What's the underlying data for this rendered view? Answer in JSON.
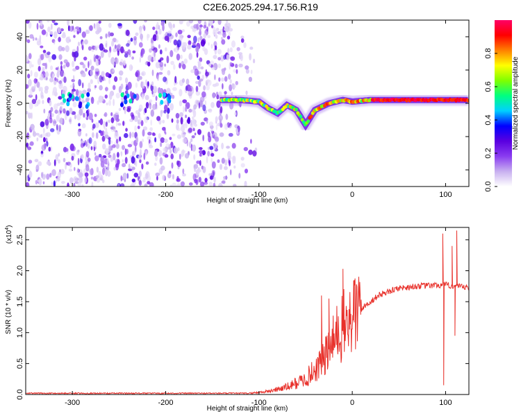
{
  "title": "C2E6.2025.294.17.56.R19",
  "chart_data": [
    {
      "type": "heatmap",
      "name": "spectrogram",
      "xlabel": "Height of straight line (km)",
      "ylabel": "Frequency (Hz)",
      "xlim": [
        -350,
        125
      ],
      "ylim": [
        -50,
        50
      ],
      "xticks": [
        -300,
        -200,
        -100,
        0,
        100
      ],
      "yticks": [
        -40,
        -20,
        0,
        20,
        40
      ],
      "colorbar": {
        "label": "Normalized spectral amplitude",
        "range": [
          0,
          1
        ],
        "ticks": [
          0.0,
          0.2,
          0.4,
          0.6,
          0.8
        ],
        "colors": [
          "#ffffff",
          "#c8b0f0",
          "#8a3cf0",
          "#5a00e0",
          "#0000ff",
          "#00d0ff",
          "#00ff80",
          "#7fff00",
          "#ffff00",
          "#ff8000",
          "#ff0000",
          "#ff0066"
        ]
      },
      "ridge": [
        {
          "h": -140,
          "f": 2
        },
        {
          "h": -120,
          "f": 2
        },
        {
          "h": -100,
          "f": 1
        },
        {
          "h": -90,
          "f": -3
        },
        {
          "h": -80,
          "f": -6
        },
        {
          "h": -70,
          "f": -1
        },
        {
          "h": -60,
          "f": -4
        },
        {
          "h": -50,
          "f": -13
        },
        {
          "h": -40,
          "f": -4
        },
        {
          "h": -25,
          "f": 0
        },
        {
          "h": -10,
          "f": 2
        },
        {
          "h": 0,
          "f": 1
        },
        {
          "h": 20,
          "f": 2
        },
        {
          "h": 50,
          "f": 2
        },
        {
          "h": 80,
          "f": 2
        },
        {
          "h": 100,
          "f": 2
        },
        {
          "h": 125,
          "f": 2
        }
      ]
    },
    {
      "type": "line",
      "name": "snr",
      "xlabel": "Height of straight line (km)",
      "ylabel": "SNR (10 * v/v)",
      "multiplier_label": "(x10",
      "multiplier_exp": "4",
      "xlim": [
        -350,
        125
      ],
      "ylim": [
        0,
        2.7
      ],
      "xticks": [
        -300,
        -200,
        -100,
        0,
        100
      ],
      "yticks": [
        0.0,
        0.5,
        1.0,
        1.5,
        2.0,
        2.5
      ],
      "color": "#e8302a",
      "envelope": [
        {
          "x": -350,
          "y": 0.02
        },
        {
          "x": -110,
          "y": 0.02
        },
        {
          "x": -90,
          "y": 0.05
        },
        {
          "x": -70,
          "y": 0.12
        },
        {
          "x": -50,
          "y": 0.25
        },
        {
          "x": -40,
          "y": 0.4
        },
        {
          "x": -25,
          "y": 0.7
        },
        {
          "x": -15,
          "y": 1.0
        },
        {
          "x": 0,
          "y": 1.25
        },
        {
          "x": 15,
          "y": 1.45
        },
        {
          "x": 30,
          "y": 1.62
        },
        {
          "x": 50,
          "y": 1.72
        },
        {
          "x": 70,
          "y": 1.75
        },
        {
          "x": 100,
          "y": 1.77
        },
        {
          "x": 125,
          "y": 1.72
        }
      ],
      "spikes": [
        {
          "x": -33,
          "y": 1.6
        },
        {
          "x": -25,
          "y": 1.55
        },
        {
          "x": -10,
          "y": 2.03
        },
        {
          "x": 2,
          "y": 1.85
        },
        {
          "x": 97,
          "y": 2.6
        },
        {
          "x": 98,
          "y": 0.15
        },
        {
          "x": 107,
          "y": 2.4
        },
        {
          "x": 110,
          "y": 0.95
        },
        {
          "x": 112,
          "y": 2.65
        }
      ]
    }
  ]
}
